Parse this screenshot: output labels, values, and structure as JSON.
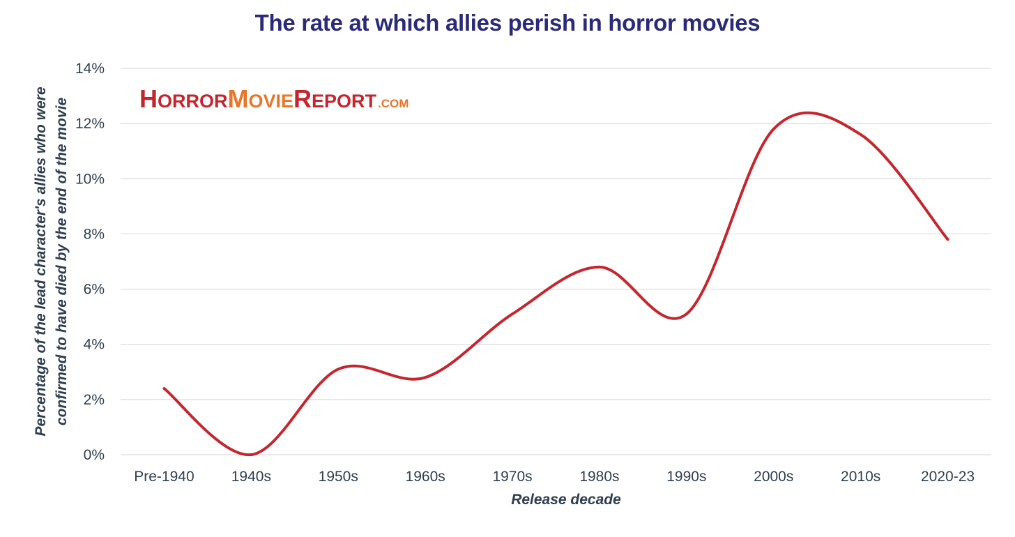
{
  "logo": {
    "horror_initial": "H",
    "horror_rest": "ORROR",
    "movie_initial": "M",
    "movie_rest": "OVIE",
    "report_initial": "R",
    "report_rest": "EPORT",
    "domain": ".COM",
    "colors": {
      "red": "#c4262e",
      "orange": "#e8762a"
    }
  },
  "chart_data": {
    "type": "line",
    "title": "The rate at which allies perish in horror movies",
    "xlabel": "Release decade",
    "ylabel_lines": [
      "Percentage of the lead character's allies who were",
      "confirmed to have died by the end of the movie"
    ],
    "categories": [
      "Pre-1940",
      "1940s",
      "1950s",
      "1960s",
      "1970s",
      "1980s",
      "1990s",
      "2000s",
      "2010s",
      "2020-23"
    ],
    "series": [
      {
        "values": [
          2.4,
          0.0,
          3.1,
          2.8,
          5.1,
          6.8,
          5.1,
          11.8,
          11.6,
          7.8
        ],
        "color": "#c4262e"
      }
    ],
    "yticks": [
      "0%",
      "2%",
      "4%",
      "6%",
      "8%",
      "10%",
      "12%",
      "14%"
    ],
    "ylim": [
      0,
      14
    ],
    "grid": true,
    "line_smoothing": "curved",
    "colors": {
      "title": "#2b2a78",
      "text": "#2f3e4e",
      "grid": "#dcdcdc"
    }
  }
}
